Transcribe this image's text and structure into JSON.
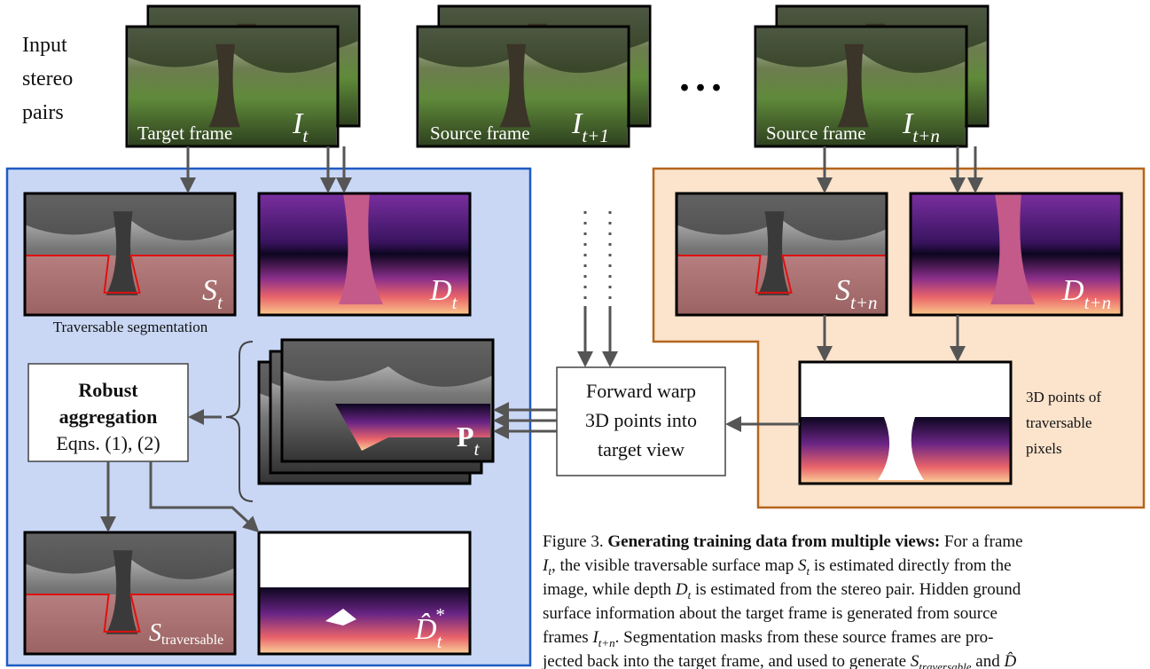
{
  "input_label": [
    "Input",
    "stereo",
    "pairs"
  ],
  "frames": [
    {
      "label": "Target frame",
      "symbol": "I",
      "sub": "t"
    },
    {
      "label": "Source frame",
      "symbol": "I",
      "sub": "t+1"
    },
    {
      "label": "Source frame",
      "symbol": "I",
      "sub": "t+n"
    }
  ],
  "ellipsis": "...",
  "target_panel": {
    "segmentation": {
      "symbol": "S",
      "sub": "t"
    },
    "depth": {
      "symbol": "D",
      "sub": "t"
    },
    "segmentation_caption": "Traversable segmentation",
    "aggregation": {
      "title_1": "Robust",
      "title_2": "aggregation",
      "equations": "Eqns. (1), (2)"
    },
    "points": {
      "symbol": "P",
      "sub": "t"
    },
    "output_segmentation": {
      "symbol": "S",
      "sub": "traversable"
    },
    "output_depth": {
      "symbol": "D̂",
      "sub": "t",
      "sup": "*"
    }
  },
  "warp": [
    "Forward warp",
    "3D points into",
    "target view"
  ],
  "source_panel": {
    "segmentation": {
      "symbol": "S",
      "sub": "t+n"
    },
    "depth": {
      "symbol": "D",
      "sub": "t+n"
    },
    "points_caption": [
      "3D points of",
      "traversable",
      "pixels"
    ]
  },
  "caption": [
    [
      {
        "text": "Figure 3. ",
        "style": "normal"
      },
      {
        "text": "Generating training data from multiple views:",
        "style": "bold"
      },
      {
        "text": " For a frame",
        "style": "normal"
      }
    ],
    [
      {
        "text": "I",
        "style": "italic"
      },
      {
        "text": "t",
        "style": "sub"
      },
      {
        "text": ", the visible traversable surface map ",
        "style": "normal"
      },
      {
        "text": "S",
        "style": "italic"
      },
      {
        "text": "t",
        "style": "sub"
      },
      {
        "text": " is estimated directly from the",
        "style": "normal"
      }
    ],
    [
      {
        "text": "image, while depth ",
        "style": "normal"
      },
      {
        "text": "D",
        "style": "italic"
      },
      {
        "text": "t",
        "style": "sub"
      },
      {
        "text": " is estimated from the stereo pair. Hidden ground",
        "style": "normal"
      }
    ],
    [
      {
        "text": "surface information about the target frame is generated from source",
        "style": "normal"
      }
    ],
    [
      {
        "text": "frames ",
        "style": "normal"
      },
      {
        "text": "I",
        "style": "italic"
      },
      {
        "text": "t+n",
        "style": "sub"
      },
      {
        "text": ". Segmentation masks from these source frames are pro-",
        "style": "normal"
      }
    ],
    [
      {
        "text": "jected back into the target frame, and used to generate ",
        "style": "normal"
      },
      {
        "text": "S",
        "style": "italic"
      },
      {
        "text": "traversable",
        "style": "sub"
      },
      {
        "text": " and ",
        "style": "normal"
      },
      {
        "text": "D̂",
        "style": "italic"
      }
    ]
  ]
}
